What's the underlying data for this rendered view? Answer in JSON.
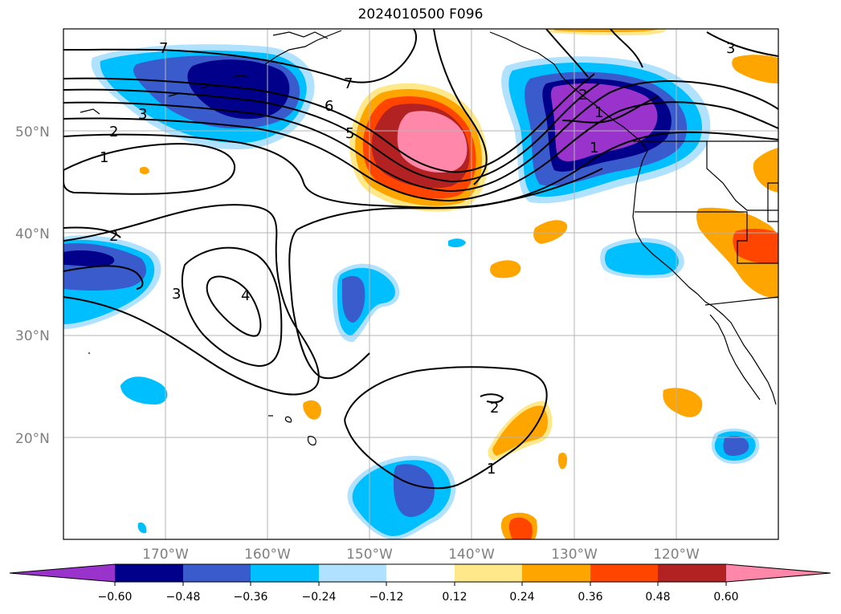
{
  "title": "2024010500 F096",
  "map": {
    "projection": "plate-carree",
    "lon_range": [
      -180,
      -110
    ],
    "lat_range": [
      10,
      60
    ],
    "grid": true,
    "lat_labels": [
      "20°N",
      "30°N",
      "40°N",
      "50°N"
    ],
    "lon_labels": [
      "170°W",
      "160°W",
      "150°W",
      "140°W",
      "130°W",
      "120°W"
    ]
  },
  "colorbar": {
    "orientation": "horizontal",
    "extend": "both",
    "ticks": [
      "−0.60",
      "−0.48",
      "−0.36",
      "−0.24",
      "−0.12",
      "0.12",
      "0.24",
      "0.36",
      "0.48",
      "0.60"
    ],
    "colors": [
      "#9933cc",
      "#00008b",
      "#3a5bcc",
      "#00bfff",
      "#b0e2ff",
      "#ffffff",
      "#ffe88a",
      "#ffa500",
      "#ff4500",
      "#b22222",
      "#ff88aa"
    ]
  },
  "contour_labels": [
    "7",
    "7",
    "6",
    "5",
    "3",
    "3",
    "2",
    "2",
    "1",
    "1",
    "1",
    "3",
    "4",
    "2",
    "1",
    "2"
  ]
}
